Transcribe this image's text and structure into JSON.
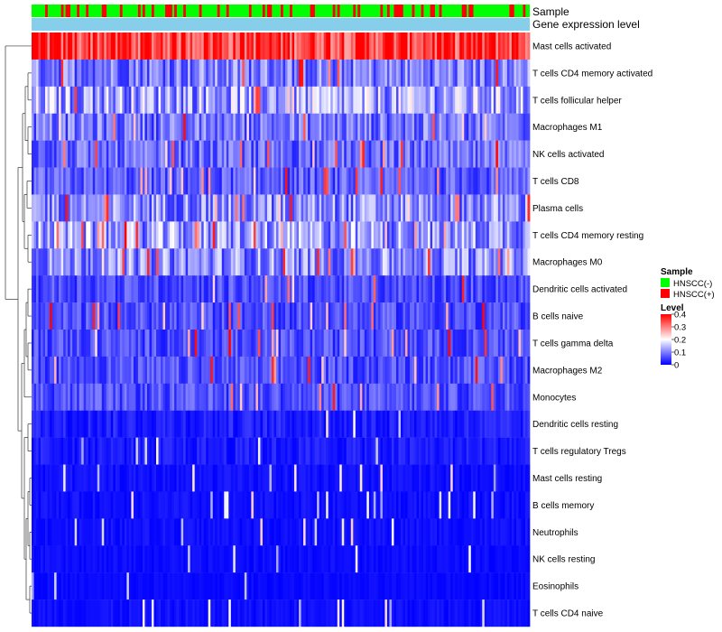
{
  "chart_data": {
    "type": "heatmap",
    "annotation_rows": [
      {
        "name": "Sample"
      },
      {
        "name": "Gene expression level"
      }
    ],
    "n_samples": 220,
    "rows": [
      {
        "label": "Mast cells activated",
        "mean": 0.36
      },
      {
        "label": "T cells CD4 memory activated",
        "mean": 0.1
      },
      {
        "label": "T cells follicular helper",
        "mean": 0.13
      },
      {
        "label": "Macrophages M1",
        "mean": 0.09
      },
      {
        "label": "NK cells activated",
        "mean": 0.08
      },
      {
        "label": "T cells CD8",
        "mean": 0.07
      },
      {
        "label": "Plasma cells",
        "mean": 0.11
      },
      {
        "label": "T cells CD4 memory resting",
        "mean": 0.12
      },
      {
        "label": "Macrophages M0",
        "mean": 0.11
      },
      {
        "label": "Dendritic cells activated",
        "mean": 0.06
      },
      {
        "label": "B cells naive",
        "mean": 0.06
      },
      {
        "label": "T cells gamma delta",
        "mean": 0.06
      },
      {
        "label": "Macrophages M2",
        "mean": 0.06
      },
      {
        "label": "Monocytes",
        "mean": 0.06
      },
      {
        "label": "Dendritic cells resting",
        "mean": 0.04
      },
      {
        "label": "T cells regulatory  Tregs",
        "mean": 0.035
      },
      {
        "label": "Mast cells resting",
        "mean": 0.02
      },
      {
        "label": "B cells memory",
        "mean": 0.02
      },
      {
        "label": "Neutrophils",
        "mean": 0.02
      },
      {
        "label": "NK cells resting",
        "mean": 0.015
      },
      {
        "label": "Eosinophils",
        "mean": 0.012
      },
      {
        "label": "T cells CD4 naive",
        "mean": 0.02
      }
    ],
    "sample_groups": [
      {
        "name": "HNSCC(-)",
        "color": "#00ff00"
      },
      {
        "name": "HNSCC(+)",
        "color": "#ff0000"
      }
    ],
    "gene_expression_color": "#87ceeb",
    "level_scale": {
      "title": "Level",
      "min": 0,
      "max": 0.4,
      "ticks": [
        "0",
        "0.1",
        "0.2",
        "0.3",
        "0.4"
      ],
      "colors": [
        "#0000ff",
        "#ffffff",
        "#ff0000"
      ]
    },
    "legend_sample_title": "Sample",
    "legend_position": "right"
  }
}
